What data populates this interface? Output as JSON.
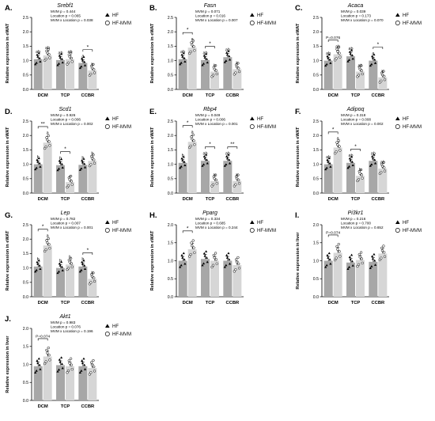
{
  "figure": {
    "legend": {
      "hf": "HF",
      "hfmvm": "HF-MVM"
    },
    "colors": {
      "hf": "#a7a7a7",
      "hfmvm": "#d6d6d6",
      "ink": "#000000"
    }
  },
  "chart_data": [
    {
      "type": "bar",
      "panel": "A.",
      "title": "Srebf1",
      "ylabel": "Relative expression in eWAT",
      "ylim": [
        0,
        2.5
      ],
      "yticks": [
        "0.0",
        "0.5",
        "1.0",
        "1.5",
        "2.0",
        "2.5"
      ],
      "categories": [
        "DCM",
        "TCP",
        "CCBR"
      ],
      "series": [
        {
          "name": "HF",
          "values": [
            1.05,
            1.02,
            0.92
          ]
        },
        {
          "name": "HF-MVM",
          "values": [
            1.18,
            1.05,
            0.66
          ]
        }
      ],
      "stats": [
        "MVM p = 0.444",
        "Location p = 0.065",
        "MVM x Location p = 0.038"
      ],
      "letters": [
        [
          "ab",
          "ab"
        ],
        [
          "ab",
          "ab"
        ],
        [
          "a",
          "b"
        ]
      ],
      "signif": [
        null,
        null,
        "*"
      ],
      "pvals": [
        null,
        null,
        null
      ]
    },
    {
      "type": "bar",
      "panel": "B.",
      "title": "Fasn",
      "ylabel": "Relative expression in eWAT",
      "ylim": [
        0,
        2.5
      ],
      "yticks": [
        "0.0",
        "0.5",
        "1.0",
        "1.5",
        "2.0",
        "2.5"
      ],
      "categories": [
        "DCM",
        "TCP",
        "CCBR"
      ],
      "series": [
        {
          "name": "HF",
          "values": [
            1.05,
            1.02,
            1.12
          ]
        },
        {
          "name": "HF-MVM",
          "values": [
            1.45,
            0.62,
            0.7
          ]
        }
      ],
      "stats": [
        "MVM p = 0.071",
        "Location p = 0.016",
        "MVM x Location p = 0.007"
      ],
      "letters": [
        [
          "ab",
          "a"
        ],
        [
          "ab",
          "b"
        ],
        [
          "ab",
          "b"
        ]
      ],
      "signif": [
        "*",
        "*",
        null
      ],
      "pvals": [
        null,
        null,
        null
      ]
    },
    {
      "type": "bar",
      "panel": "C.",
      "title": "Acaca",
      "ylabel": "Relative expression in eWAT",
      "ylim": [
        0,
        2.5
      ],
      "yticks": [
        "0.0",
        "0.5",
        "1.0",
        "1.5",
        "2.0",
        "2.5"
      ],
      "categories": [
        "DCM",
        "TCP",
        "CCBR"
      ],
      "series": [
        {
          "name": "HF",
          "values": [
            1.0,
            1.15,
            1.0
          ]
        },
        {
          "name": "HF-MVM",
          "values": [
            1.22,
            0.62,
            0.42
          ]
        }
      ],
      "stats": [
        "MVM p = 0.039",
        "Location p = 0.173",
        "MVM x Location p = 0.070"
      ],
      "letters": [
        [
          "ab",
          "ab"
        ],
        [
          "ab",
          "ab"
        ],
        [
          "a",
          "b"
        ]
      ],
      "signif": [
        null,
        null,
        "*"
      ],
      "pvals": [
        "P=0.076",
        null,
        null
      ]
    },
    {
      "type": "bar",
      "panel": "D.",
      "title": "Scd1",
      "ylabel": "Relative expression in eWAT",
      "ylim": [
        0,
        2.5
      ],
      "yticks": [
        "0.0",
        "0.5",
        "1.0",
        "1.5",
        "2.0",
        "2.5"
      ],
      "categories": [
        "DCM",
        "TCP",
        "CCBR"
      ],
      "series": [
        {
          "name": "HF",
          "values": [
            1.0,
            0.97,
            0.98
          ]
        },
        {
          "name": "HF-MVM",
          "values": [
            1.75,
            0.38,
            1.12
          ]
        }
      ],
      "stats": [
        "MVM p = 0.926",
        "Location p = 0.006",
        "MVM x Location p = 0.002"
      ],
      "letters": [
        [
          "b",
          "a"
        ],
        [
          "b",
          "c"
        ],
        [
          "b",
          "b"
        ]
      ],
      "signif": [
        "**",
        "*",
        null
      ],
      "pvals": [
        null,
        null,
        null
      ]
    },
    {
      "type": "bar",
      "panel": "E.",
      "title": "Rbp4",
      "ylabel": "Relative expression in eWAT",
      "ylim": [
        0,
        2.5
      ],
      "yticks": [
        "0.0",
        "0.5",
        "1.0",
        "1.5",
        "2.0",
        "2.5"
      ],
      "categories": [
        "DCM",
        "TCP",
        "CCBR"
      ],
      "series": [
        {
          "name": "HF",
          "values": [
            1.05,
            1.12,
            1.12
          ]
        },
        {
          "name": "HF-MVM",
          "values": [
            1.78,
            0.42,
            0.42
          ]
        }
      ],
      "stats": [
        "MVM p = 0.049",
        "Location p = 0.006",
        "MVM x Location p = 0.001"
      ],
      "letters": [
        [
          "b",
          "a"
        ],
        [
          "ab",
          "b"
        ],
        [
          "ab",
          "b"
        ]
      ],
      "signif": [
        "*",
        "*",
        "**"
      ],
      "pvals": [
        null,
        null,
        null
      ]
    },
    {
      "type": "bar",
      "panel": "F.",
      "title": "Adipoq",
      "ylabel": "Relative expression in eWAT",
      "ylim": [
        0,
        2.5
      ],
      "yticks": [
        "0.0",
        "0.5",
        "1.0",
        "1.5",
        "2.0",
        "2.5"
      ],
      "categories": [
        "DCM",
        "TCP",
        "CCBR"
      ],
      "series": [
        {
          "name": "HF",
          "values": [
            1.0,
            1.05,
            1.12
          ]
        },
        {
          "name": "HF-MVM",
          "values": [
            1.58,
            0.6,
            0.85
          ]
        }
      ],
      "stats": [
        "MVM p = 0.318",
        "Location p = 0.008",
        "MVM x Location p = 0.002"
      ],
      "letters": [
        [
          "ab",
          "a"
        ],
        [
          "ab",
          "b"
        ],
        [
          "ab",
          "ab"
        ]
      ],
      "signif": [
        "*",
        "*",
        null
      ],
      "pvals": [
        null,
        null,
        null
      ]
    },
    {
      "type": "bar",
      "panel": "G.",
      "title": "Lep",
      "ylabel": "Relative expression in eWAT",
      "ylim": [
        0,
        2.5
      ],
      "yticks": [
        "0.0",
        "0.5",
        "1.0",
        "1.5",
        "2.0",
        "2.5"
      ],
      "categories": [
        "DCM",
        "TCP",
        "CCBR"
      ],
      "series": [
        {
          "name": "HF",
          "values": [
            1.05,
            1.0,
            1.05
          ]
        },
        {
          "name": "HF-MVM",
          "values": [
            1.78,
            1.12,
            0.62
          ]
        }
      ],
      "stats": [
        "MVM p = 0.782",
        "Location p = 0.007",
        "MVM x Location p = 0.001"
      ],
      "letters": [
        [
          "b",
          "a"
        ],
        [
          "b",
          "b"
        ],
        [
          "b",
          "b"
        ]
      ],
      "signif": [
        "*",
        null,
        "*"
      ],
      "pvals": [
        null,
        null,
        null
      ]
    },
    {
      "type": "bar",
      "panel": "H.",
      "title": "Pparg",
      "ylabel": "Relative expression in eWAT",
      "ylim": [
        0,
        2.0
      ],
      "yticks": [
        "0.0",
        "0.5",
        "1.0",
        "1.5",
        "2.0"
      ],
      "categories": [
        "DCM",
        "TCP",
        "CCBR"
      ],
      "series": [
        {
          "name": "HF",
          "values": [
            1.0,
            1.05,
            1.0
          ]
        },
        {
          "name": "HF-MVM",
          "values": [
            1.32,
            1.0,
            0.88
          ]
        }
      ],
      "stats": [
        "MVM p = 0.334",
        "Location p = 0.685",
        "MVM x Location p = 0.244"
      ],
      "letters": [
        [
          "",
          ""
        ],
        [
          "",
          ""
        ],
        [
          "",
          ""
        ]
      ],
      "signif": [
        "*",
        null,
        null
      ],
      "pvals": [
        null,
        null,
        null
      ]
    },
    {
      "type": "bar",
      "panel": "I.",
      "title": "Pi3kr1",
      "ylabel": "Relative expression in liver",
      "ylim": [
        0,
        2.0
      ],
      "yticks": [
        "0.0",
        "0.5",
        "1.0",
        "1.5",
        "2.0"
      ],
      "categories": [
        "DCM",
        "TCP",
        "CCBR"
      ],
      "series": [
        {
          "name": "HF",
          "values": [
            1.0,
            0.95,
            0.97
          ]
        },
        {
          "name": "HF-MVM",
          "values": [
            1.22,
            1.02,
            1.2
          ]
        }
      ],
      "stats": [
        "MVM p = 0.216",
        "Location p = 0.700",
        "MVM x Location p = 0.652"
      ],
      "letters": [
        [
          "",
          ""
        ],
        [
          "",
          ""
        ],
        [
          "",
          ""
        ]
      ],
      "signif": [
        null,
        null,
        null
      ],
      "pvals": [
        "P=0.074",
        null,
        null
      ]
    },
    {
      "type": "bar",
      "panel": "J.",
      "title": "Akt1",
      "ylabel": "Relative expression in liver",
      "ylim": [
        0,
        2.0
      ],
      "yticks": [
        "0.0",
        "0.5",
        "1.0",
        "1.5",
        "2.0"
      ],
      "categories": [
        "DCM",
        "TCP",
        "CCBR"
      ],
      "series": [
        {
          "name": "HF",
          "values": [
            0.95,
            0.98,
            0.95
          ]
        },
        {
          "name": "HF-MVM",
          "values": [
            1.22,
            0.95,
            0.9
          ]
        }
      ],
      "stats": [
        "MVM p = 0.983",
        "Location p = 0.076",
        "MVM x Location p = 0.196"
      ],
      "letters": [
        [
          "",
          ""
        ],
        [
          "",
          ""
        ],
        [
          "",
          ""
        ]
      ],
      "signif": [
        null,
        null,
        null
      ],
      "pvals": [
        "P=0.074",
        null,
        null
      ]
    }
  ]
}
